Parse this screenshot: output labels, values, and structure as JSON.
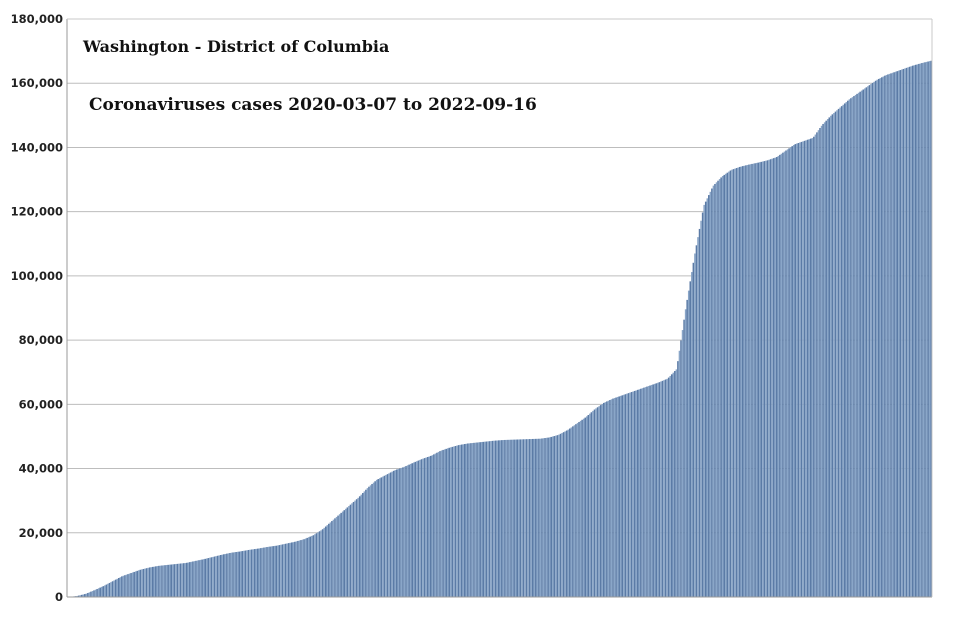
{
  "chart_data": {
    "type": "bar",
    "title": "Washington - District of Columbia",
    "subtitle": "Coronaviruses cases 2020-03-07 to 2022-09-16",
    "xlabel": "",
    "ylabel": "",
    "x_start": "2020-03-07",
    "x_end": "2022-09-16",
    "ylim": [
      0,
      180000
    ],
    "yticks": [
      0,
      20000,
      40000,
      60000,
      80000,
      100000,
      120000,
      140000,
      160000,
      180000
    ],
    "ytick_labels": [
      "0",
      "20,000",
      "40,000",
      "60,000",
      "80,000",
      "100,000",
      "120,000",
      "140,000",
      "160,000",
      "180,000"
    ],
    "grid": true,
    "legend": "none",
    "bar_color": "#8aa6c8",
    "bar_edge_color": "#5b7ba6",
    "grid_color": "#bdbdbd",
    "series": [
      {
        "values": [
          0,
          300,
          1000,
          2200,
          3500,
          5000,
          6500,
          7500,
          8500,
          9200,
          9700,
          10000,
          10300,
          10600,
          11200,
          11800,
          12500,
          13200,
          13800,
          14200,
          14700,
          15100,
          15600,
          16000,
          16600,
          17200,
          18000,
          19200,
          21000,
          23500,
          26000,
          28500,
          31000,
          34000,
          36500,
          38000,
          39500,
          40500,
          41800,
          43000,
          44000,
          45500,
          46500,
          47300,
          47800,
          48100,
          48400,
          48700,
          48900,
          49000,
          49100,
          49200,
          49300,
          49700,
          50500,
          52000,
          54000,
          56000,
          58500,
          60500,
          61800,
          62800,
          63800,
          64800,
          65800,
          66800,
          68000,
          71000,
          90000,
          107000,
          122000,
          128000,
          131000,
          133000,
          134000,
          134700,
          135300,
          136000,
          137000,
          139000,
          141000,
          142000,
          143000,
          147000,
          150000,
          152500,
          155000,
          157000,
          159000,
          161000,
          162500,
          163500,
          164500,
          165500,
          166300,
          167000
        ]
      }
    ]
  }
}
